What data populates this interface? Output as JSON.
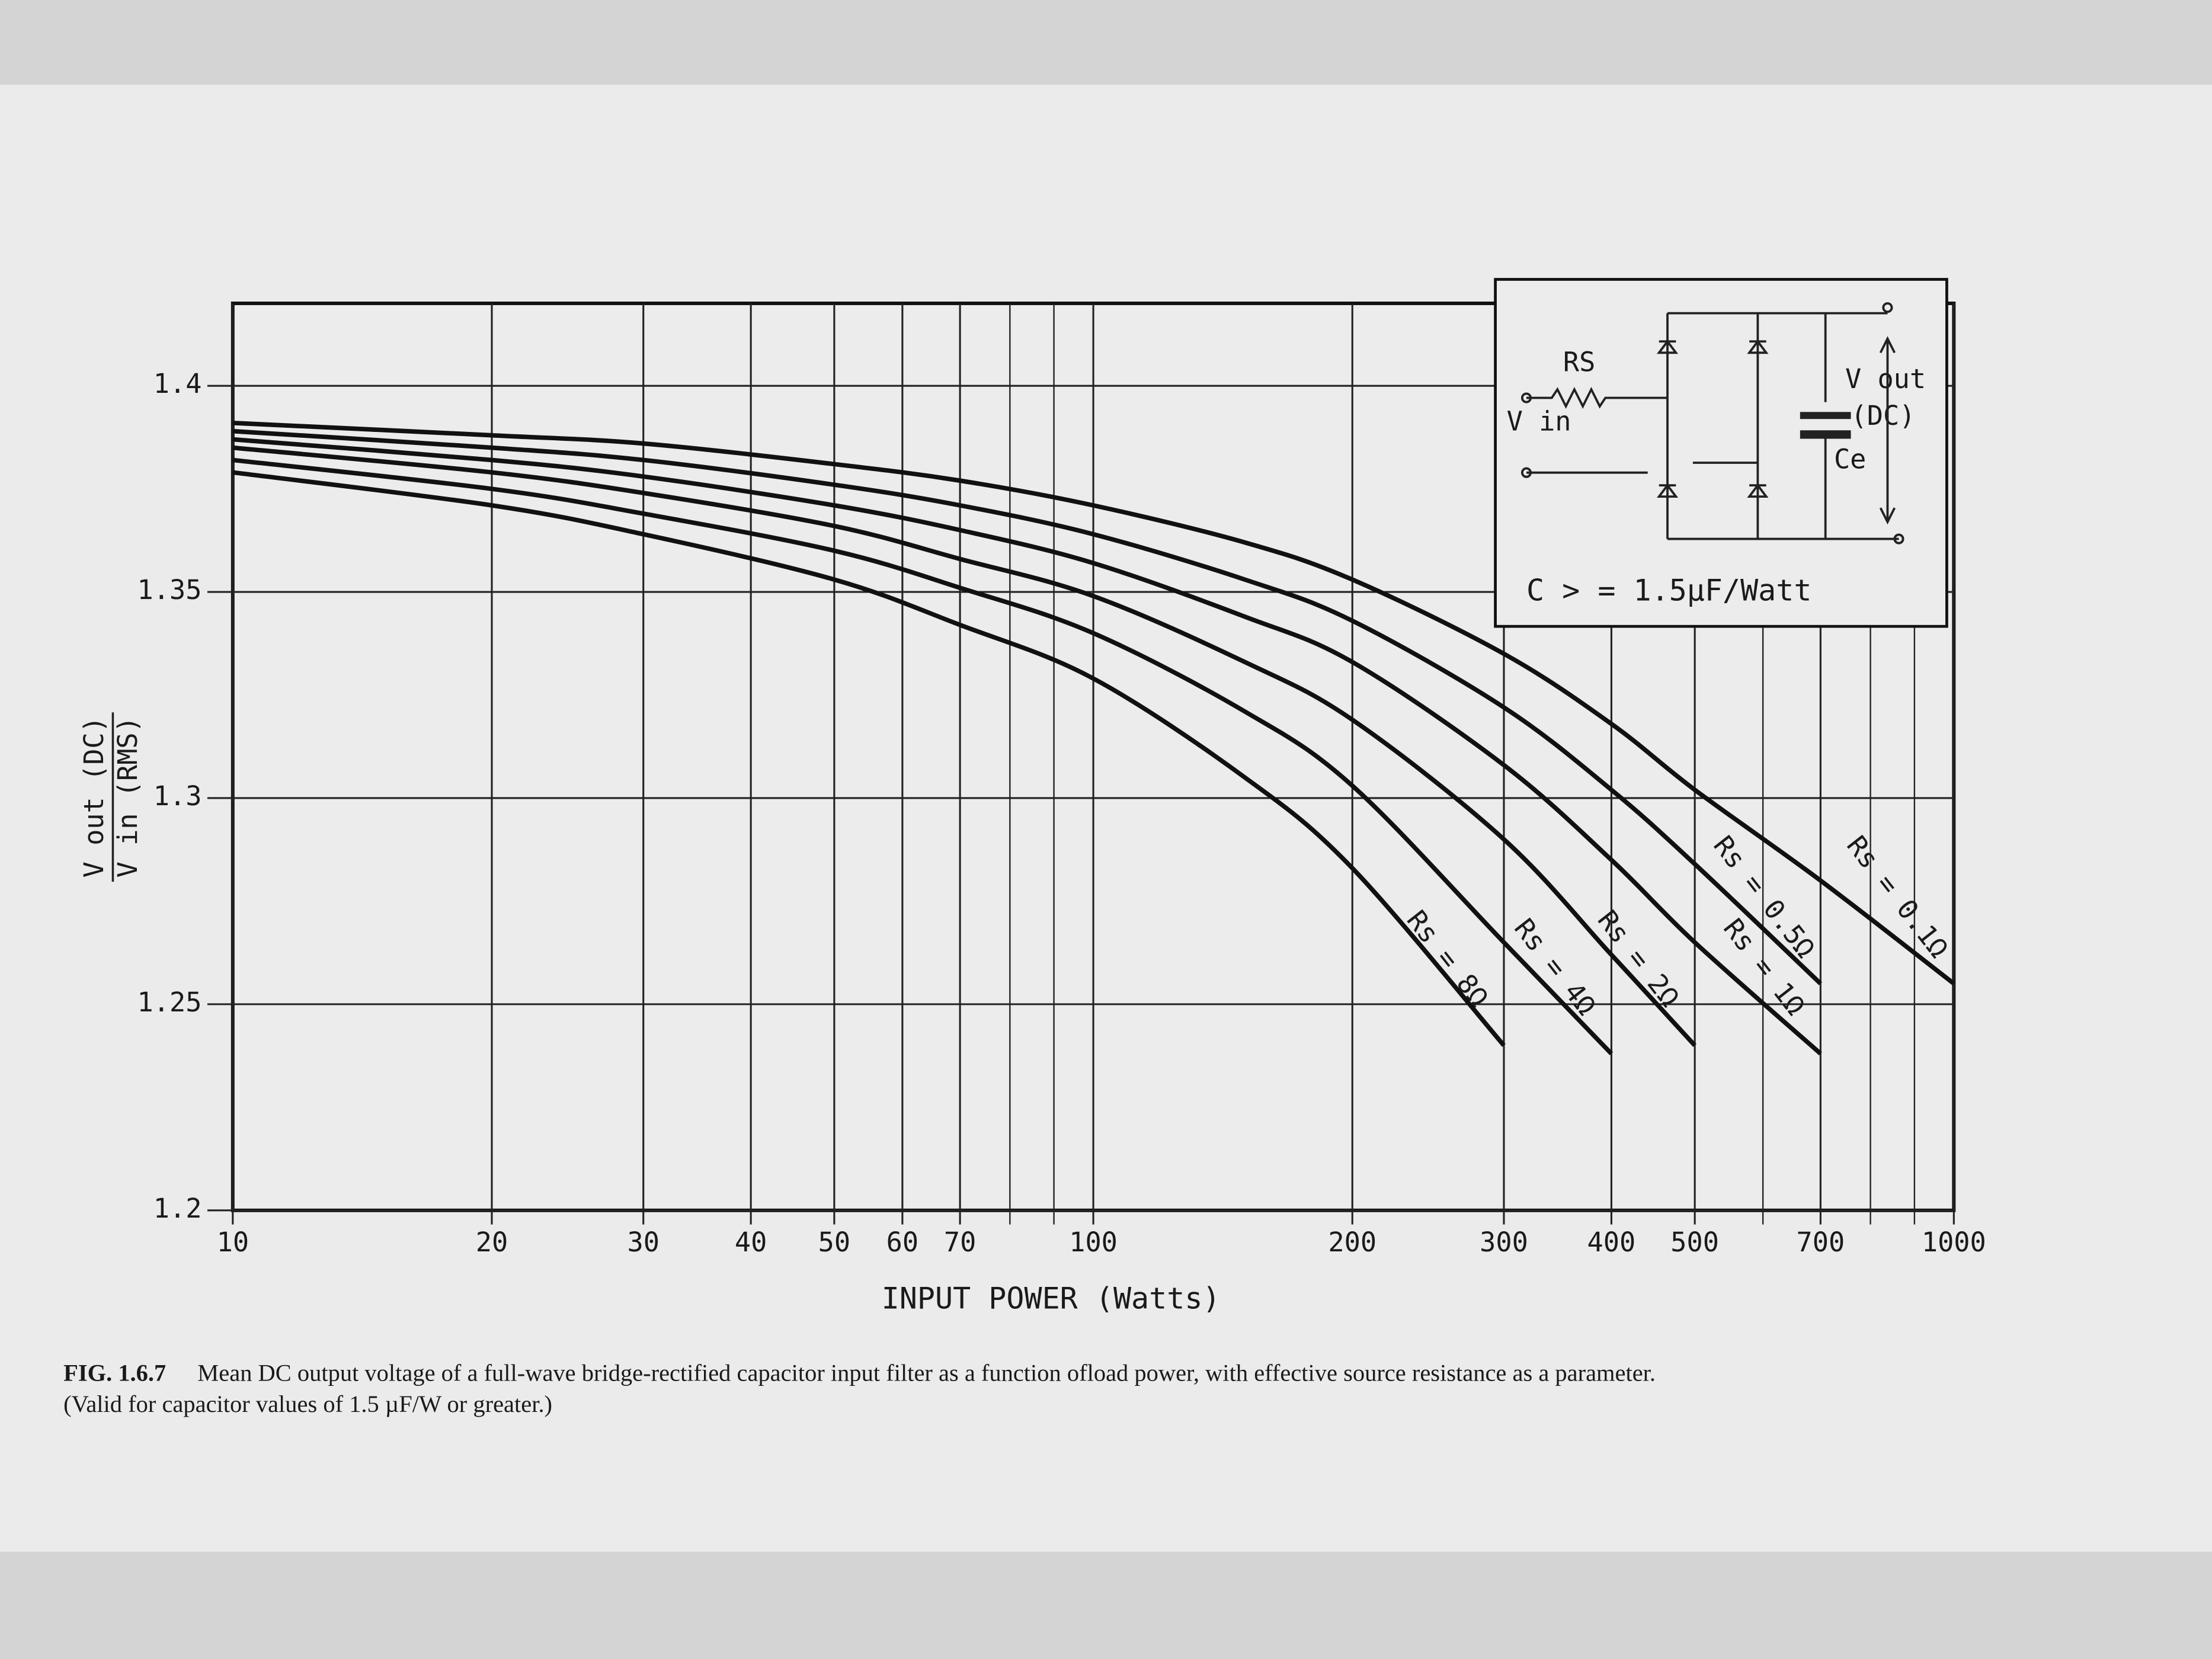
{
  "chart_data": {
    "type": "line",
    "x_label": "INPUT POWER (Watts)",
    "y_label_numerator": "V out (DC)",
    "y_label_denominator": "V in (RMS)",
    "x_scale": "log",
    "xlim": [
      10,
      1000
    ],
    "ylim": [
      1.2,
      1.42
    ],
    "xticks": [
      10,
      20,
      30,
      40,
      50,
      60,
      70,
      100,
      200,
      300,
      400,
      500,
      700,
      1000
    ],
    "x_minor_grid": [
      80,
      90,
      600,
      800,
      900
    ],
    "yticks": [
      1.2,
      1.25,
      1.3,
      1.35,
      1.4
    ],
    "grid": true,
    "x": [
      10,
      20,
      30,
      50,
      70,
      100,
      150,
      200,
      300,
      400,
      500,
      700,
      1000
    ],
    "series": [
      {
        "name": "Rs = 0.1Ω",
        "color": "#111111",
        "values": [
          1.391,
          1.388,
          1.386,
          1.381,
          1.377,
          1.371,
          1.362,
          1.353,
          1.335,
          1.318,
          1.302,
          1.28,
          1.255
        ]
      },
      {
        "name": "Rs = 0.5Ω",
        "color": "#111111",
        "values": [
          1.389,
          1.385,
          1.382,
          1.376,
          1.371,
          1.364,
          1.353,
          1.343,
          1.322,
          1.302,
          1.284,
          1.255,
          null
        ]
      },
      {
        "name": "Rs = 1Ω",
        "color": "#111111",
        "values": [
          1.387,
          1.382,
          1.378,
          1.371,
          1.365,
          1.357,
          1.344,
          1.333,
          1.308,
          1.285,
          1.265,
          1.238,
          null
        ]
      },
      {
        "name": "Rs = 2Ω",
        "color": "#111111",
        "values": [
          1.385,
          1.379,
          1.374,
          1.366,
          1.358,
          1.349,
          1.333,
          1.319,
          1.29,
          1.262,
          1.24,
          null,
          null
        ]
      },
      {
        "name": "Rs = 4Ω",
        "color": "#111111",
        "values": [
          1.382,
          1.375,
          1.369,
          1.36,
          1.351,
          1.34,
          1.321,
          1.303,
          1.265,
          1.238,
          null,
          null,
          null
        ]
      },
      {
        "name": "Rs = 8Ω",
        "color": "#111111",
        "values": [
          1.379,
          1.371,
          1.364,
          1.353,
          1.342,
          1.329,
          1.305,
          1.283,
          1.24,
          null,
          null,
          null,
          null
        ]
      }
    ],
    "inset": {
      "rs": "RS",
      "vin": "V in",
      "vout": "V out",
      "dc": "(DC)",
      "ce": "Ce",
      "note": "C > = 1.5µF/Watt"
    },
    "caption": {
      "figure": "FIG. 1.6.7",
      "text": "Mean DC output voltage of a full-wave bridge-rectified capacitor input filter as a function ofload power, with effective source resistance as a parameter.",
      "note": "(Valid for capacitor values of 1.5 µF/W or greater.)"
    }
  }
}
